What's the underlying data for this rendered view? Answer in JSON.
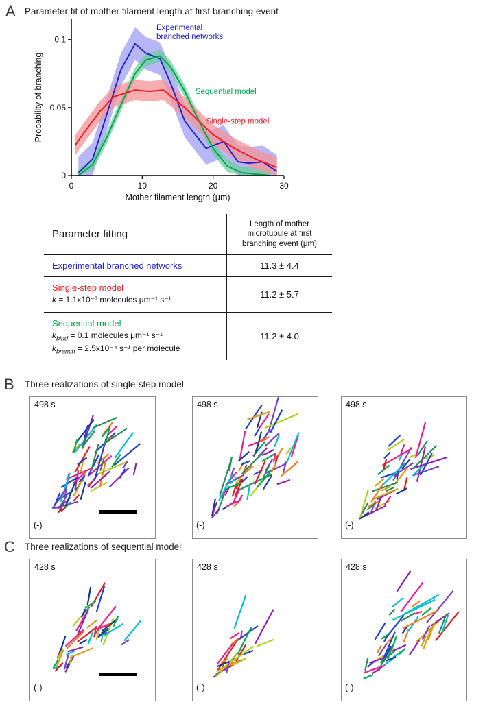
{
  "panel_a": {
    "letter": "A",
    "title": "Parameter fit of mother filament length at first branching event"
  },
  "chart_data": {
    "type": "line",
    "title": "Parameter fit of mother filament length at first branching event",
    "xlabel": "Mother filament length (μm)",
    "ylabel": "Probability of branching",
    "xlim": [
      0,
      30
    ],
    "ylim": [
      0,
      0.115
    ],
    "xticks": [
      0,
      10,
      20,
      30
    ],
    "xtick_labels": [
      "0",
      "10",
      "20",
      "30"
    ],
    "yticks": [
      0,
      0.05,
      0.1
    ],
    "ytick_labels": [
      "0",
      "0.05",
      "0.1"
    ],
    "grid": false,
    "series": [
      {
        "name": "Experimental branched networks",
        "color": "#2323c8",
        "band_color": "#7b7bf0",
        "band_opacity": 0.55,
        "band": 0.012,
        "x": [
          1,
          3,
          5,
          7,
          9,
          10.5,
          12.5,
          14,
          16,
          19,
          21.5,
          23.5,
          25,
          27,
          29
        ],
        "y": [
          0.002,
          0.012,
          0.045,
          0.078,
          0.097,
          0.09,
          0.086,
          0.068,
          0.04,
          0.02,
          0.025,
          0.01,
          0.009,
          0.01,
          0.003
        ]
      },
      {
        "name": "Sequential model",
        "color": "#00a651",
        "band_color": "#66cc99",
        "band_opacity": 0.7,
        "band": 0.0045,
        "x": [
          1,
          3,
          5,
          7,
          9,
          10.5,
          12.5,
          14,
          16,
          18,
          20,
          22,
          24,
          26,
          28
        ],
        "y": [
          0.0,
          0.008,
          0.028,
          0.052,
          0.075,
          0.085,
          0.088,
          0.08,
          0.062,
          0.04,
          0.02,
          0.007,
          0.002,
          0.001,
          0.0
        ]
      },
      {
        "name": "Single-step model",
        "color": "#ed1c24",
        "band_color": "#f59397",
        "band_opacity": 0.75,
        "band": 0.0075,
        "x": [
          0.5,
          2,
          4,
          6,
          9,
          11,
          13,
          16,
          18,
          20,
          23,
          26,
          29
        ],
        "y": [
          0.022,
          0.033,
          0.047,
          0.058,
          0.063,
          0.062,
          0.063,
          0.05,
          0.04,
          0.03,
          0.02,
          0.012,
          0.006
        ]
      }
    ],
    "annotations": [
      {
        "text": "Experimental\nbranched networks",
        "color": "#2323c8",
        "x": 12.0,
        "y": 0.107
      },
      {
        "text": "Sequential model",
        "color": "#00a651",
        "x": 17.5,
        "y": 0.06
      },
      {
        "text": "Single-step model",
        "color": "#ed1c24",
        "x": 19.0,
        "y": 0.038
      }
    ]
  },
  "table": {
    "header_left": "Parameter fitting",
    "header_right": "Length of mother\nmicrotubule at first\nbranching event (μm)",
    "rows": [
      {
        "name": "Experimental branched networks",
        "color": "#2323c8",
        "params": [],
        "value": "11.3 ± 4.4"
      },
      {
        "name": "Single-step model",
        "color": "#ed1c24",
        "params": [
          {
            "k": "k",
            "sub": "",
            "rest": " = 1.1x10⁻³ molecules μm⁻¹ s⁻¹"
          }
        ],
        "value": "11.2 ± 5.7"
      },
      {
        "name": "Sequential model",
        "color": "#00a651",
        "params": [
          {
            "k": "k",
            "sub": "bind",
            "rest": " = 0.1 molecules μm⁻¹ s⁻¹"
          },
          {
            "k": "k",
            "sub": "branch",
            "rest": " = 2.5x10⁻⁴ s⁻¹ per molecule"
          }
        ],
        "value": "11.2 ± 4.0"
      }
    ]
  },
  "network_palette": [
    "#e21b1b",
    "#1f3fd4",
    "#00a651",
    "#f47b20",
    "#8e24aa",
    "#00bcd4",
    "#e91e8c",
    "#b5cc1f",
    "#123a93",
    "#d4a017",
    "#7f3fbf",
    "#2e8b57"
  ],
  "panel_b": {
    "letter": "B",
    "title": "Three realizations of single-step model",
    "realizations": [
      {
        "time": "498 s",
        "origin": "(-)",
        "seed": 11,
        "segments": 62,
        "spread": 150
      },
      {
        "time": "498 s",
        "origin": "(-)",
        "seed": 27,
        "segments": 72,
        "spread": 155
      },
      {
        "time": "498 s",
        "origin": "(-)",
        "seed": 38,
        "segments": 44,
        "spread": 130
      }
    ]
  },
  "panel_c": {
    "letter": "C",
    "title": "Three realizations of sequential model",
    "realizations": [
      {
        "time": "428 s",
        "origin": "(-)",
        "seed": 47,
        "segments": 46,
        "spread": 128
      },
      {
        "time": "428 s",
        "origin": "(-)",
        "seed": 52,
        "segments": 26,
        "spread": 92
      },
      {
        "time": "428 s",
        "origin": "(-)",
        "seed": 69,
        "segments": 50,
        "spread": 142
      }
    ]
  }
}
